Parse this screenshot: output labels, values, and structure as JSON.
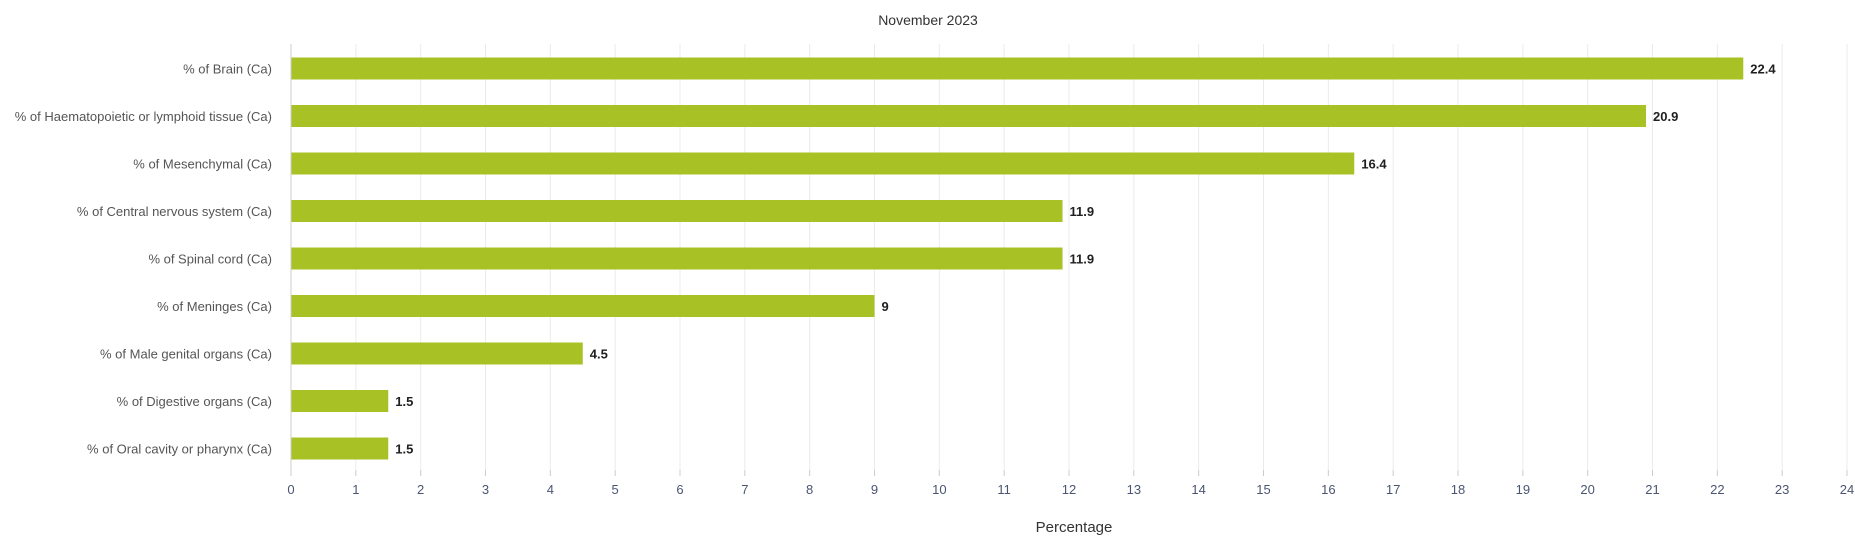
{
  "chart_data": {
    "type": "bar",
    "orientation": "horizontal",
    "title": "November 2023",
    "xlabel": "Percentage",
    "ylabel": "",
    "xlim": [
      0,
      24
    ],
    "x_ticks": [
      0,
      1,
      2,
      3,
      4,
      5,
      6,
      7,
      8,
      9,
      10,
      11,
      12,
      13,
      14,
      15,
      16,
      17,
      18,
      19,
      20,
      21,
      22,
      23,
      24
    ],
    "grid": "vertical",
    "legend": "none",
    "bar_color": "#a8c125",
    "categories": [
      "% of Brain (Ca)",
      "% of Haematopoietic or lymphoid tissue (Ca)",
      "% of Mesenchymal (Ca)",
      "% of Central nervous system (Ca)",
      "% of Spinal cord (Ca)",
      "% of Meninges (Ca)",
      "% of Male genital organs (Ca)",
      "% of Digestive organs (Ca)",
      "% of Oral cavity or pharynx (Ca)"
    ],
    "values": [
      22.4,
      20.9,
      16.4,
      11.9,
      11.9,
      9,
      4.5,
      1.5,
      1.5
    ],
    "data_labels": [
      "22.4",
      "20.9",
      "16.4",
      "11.9",
      "11.9",
      "9",
      "4.5",
      "1.5",
      "1.5"
    ]
  }
}
